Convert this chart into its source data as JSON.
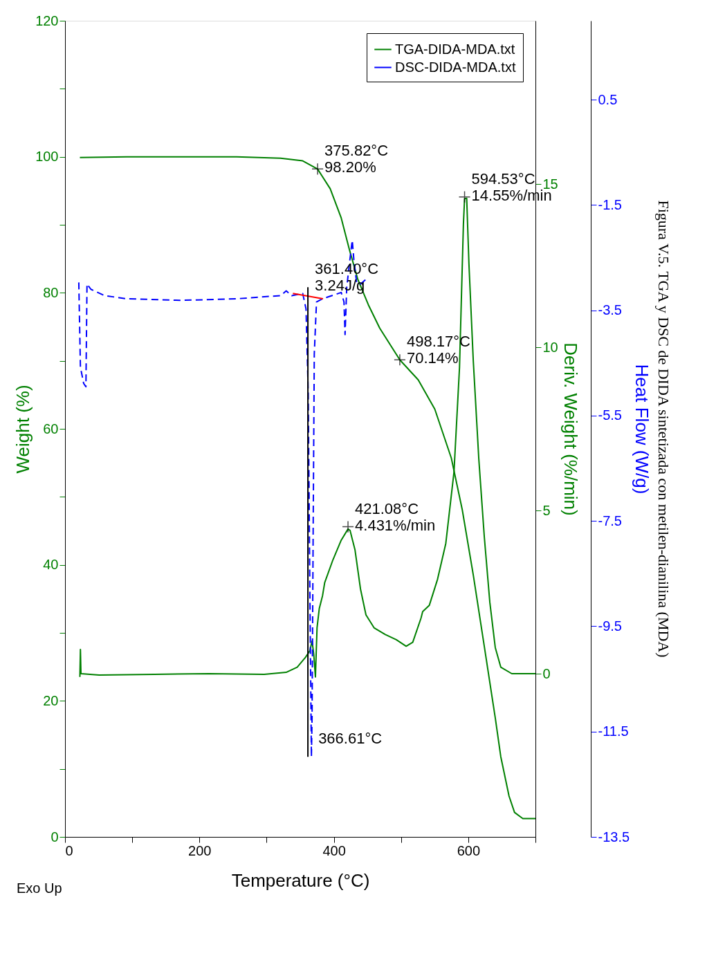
{
  "chart_data": {
    "type": "line",
    "xlabel": "Temperature (°C)",
    "ylabel": "Weight (%)",
    "y2label": "Deriv. Weight (%/min)",
    "y3label": "Heat Flow (W/g)",
    "xlim": [
      0,
      700
    ],
    "xticks": [
      0,
      {
        "value": 100,
        "label": null
      },
      200,
      {
        "value": 300,
        "label": null
      },
      400,
      {
        "value": 500,
        "label": null
      },
      600,
      {
        "value": 700,
        "label": null
      }
    ],
    "ylim": [
      0,
      120
    ],
    "yticks": [
      0,
      {
        "value": 10,
        "label": null
      },
      20,
      {
        "value": 30,
        "label": null
      },
      40,
      {
        "value": 50,
        "label": null
      },
      60,
      {
        "value": 70,
        "label": null
      },
      80,
      {
        "value": 90,
        "label": null
      },
      100,
      {
        "value": 110,
        "label": null
      },
      120
    ],
    "y2lim": [
      -5,
      20
    ],
    "y2ticks": [
      0,
      5,
      10,
      15
    ],
    "y3lim": [
      -13.5,
      2
    ],
    "y3ticks": [
      -13.5,
      -11.5,
      -9.5,
      -7.5,
      -5.5,
      -3.5,
      -1.5,
      0.5
    ],
    "grid": false,
    "legend": "top right",
    "marker": "none",
    "series": [
      {
        "name": "TGA-DIDA-MDA.txt",
        "axis": "y",
        "color": "#008000",
        "x": [
          22.1,
          91.7,
          173.6,
          255.4,
          320.9,
          353.7,
          375.82,
          394.6,
          411.0,
          423.3,
          435.6,
          452.0,
          468.3,
          498.17,
          525.6,
          550.2,
          574.8,
          591.1,
          607.5,
          623.9,
          640.2,
          648.4,
          660.7,
          668.9,
          681.2,
          700
        ],
        "values": [
          99.9,
          100.0,
          100.0,
          100.0,
          99.8,
          99.4,
          98.2,
          95.3,
          91.0,
          86.3,
          82.0,
          78.1,
          74.8,
          70.14,
          67.2,
          62.9,
          55.7,
          48.1,
          38.5,
          28.0,
          17.5,
          11.8,
          6.0,
          3.6,
          2.7,
          2.7
        ]
      },
      {
        "axis": "y2",
        "color": "#008000",
        "x": [
          22.1,
          22.9,
          23.7,
          50.8,
          132.6,
          214.5,
          296.4,
          329.1,
          345.5,
          357.8,
          364.3,
          367.6,
          370.1,
          372.6,
          375.0,
          378.3,
          383.2,
          386.4,
          398.7,
          411.0,
          421.08,
          424.1,
          431.5,
          439.7,
          447.8,
          460.1,
          476.5,
          492.9,
          507.6,
          517.4,
          529.7,
          532.2,
          542.0,
          554.3,
          566.6,
          578.8,
          587.0,
          592.8,
          594.53,
          597.7,
          601.0,
          607.5,
          615.7,
          623.9,
          632.1,
          640.2,
          648.4,
          664.8,
          700
        ],
        "values": [
          -0.1,
          0.74,
          0.0,
          -0.04,
          -0.02,
          0.0,
          -0.02,
          0.04,
          0.2,
          0.5,
          0.7,
          1.0,
          0.6,
          -0.1,
          1.4,
          1.99,
          2.39,
          2.79,
          3.49,
          4.09,
          4.431,
          4.39,
          3.79,
          2.59,
          1.8,
          1.4,
          1.2,
          1.04,
          0.84,
          0.96,
          1.7,
          1.9,
          2.09,
          2.89,
          3.99,
          6.18,
          9.38,
          13.76,
          14.55,
          14.56,
          12.57,
          9.58,
          6.58,
          4.19,
          2.19,
          0.8,
          0.2,
          0.0,
          0.0
        ]
      },
      {
        "name": "DSC-DIDA-MDA.txt",
        "axis": "y3",
        "color": "#0000ff",
        "line_style": "dashed",
        "x": [
          20.5,
          22.9,
          27.8,
          31.1,
          32.7,
          38.5,
          58.9,
          91.7,
          173.6,
          255.4,
          320.9,
          329.1,
          337.3,
          353.7,
          358.6,
          361.9,
          364.3,
          366.61,
          367.6,
          369.3,
          370.9,
          374.2,
          383.2,
          411.0,
          415.1,
          416.7,
          419.2,
          423.3,
          427.4,
          429.8,
          433.9,
          439.7,
          447.8
        ],
        "values": [
          -2.97,
          -4.58,
          -4.89,
          -4.95,
          -3.0,
          -3.1,
          -3.22,
          -3.28,
          -3.31,
          -3.28,
          -3.22,
          -3.13,
          -3.22,
          -3.18,
          -3.47,
          -5.07,
          -8.77,
          -11.98,
          -11.24,
          -7.54,
          -4.33,
          -3.34,
          -3.28,
          -3.16,
          -3.34,
          -3.96,
          -3.06,
          -2.6,
          -2.17,
          -2.54,
          -2.97,
          -3.0,
          -2.91
        ]
      },
      {
        "axis": "y3",
        "color": "#ff0000",
        "x": [
          339.0,
          384.0
        ],
        "values": [
          -3.18,
          -3.28
        ]
      },
      {
        "axis": "y3",
        "color": "#000000",
        "x": [
          361.4,
          361.4
        ],
        "values": [
          -3.06,
          -11.98
        ]
      }
    ],
    "annotations": [
      {
        "text": "375.82°C\n98.20%",
        "x": 375.82,
        "y": 98.2
      },
      {
        "text": "498.17°C\n70.14%",
        "x": 498.17,
        "y": 70.14
      },
      {
        "text": "421.08°C\n4.431%/min",
        "x": 421.08,
        "y": 45.6
      },
      {
        "text": "594.53°C\n14.55%/min",
        "x": 594.53,
        "y": 94.1
      },
      {
        "text": "361.40°C\n3.24J/g",
        "x": 361.4,
        "y": 80.8
      },
      {
        "text": "366.61°C",
        "x": 366.61,
        "y": 11.8
      },
      "Exo Up",
      "Figura V.5. TGA y DSC de DIDA sintetizada con metilen-dianilina (MDA)"
    ]
  }
}
